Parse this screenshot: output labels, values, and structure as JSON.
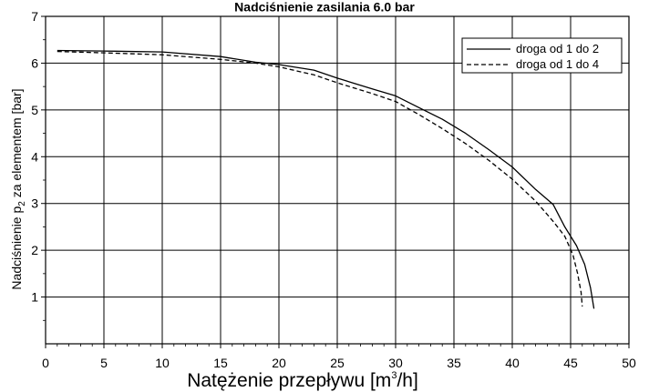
{
  "chart_data": {
    "type": "line",
    "title": "Nadciśnienie zasilania 6.0 bar",
    "xlabel": {
      "prefix": "Natężenie przepływu [m",
      "sup": "3",
      "suffix": "/h]"
    },
    "ylabel": {
      "prefix": "Nadciśnienie p",
      "sub": "2",
      "suffix": " za elementem [bar]"
    },
    "xlim": [
      0,
      50
    ],
    "ylim": [
      0,
      7
    ],
    "xticks": [
      0,
      5,
      10,
      15,
      20,
      25,
      30,
      35,
      40,
      45,
      50
    ],
    "yticks": [
      1,
      2,
      3,
      4,
      5,
      6,
      7
    ],
    "grid": true,
    "legend_position": "top-right",
    "series": [
      {
        "name": "droga od 1 do 2",
        "style": "solid",
        "color": "#000000",
        "points": [
          [
            1,
            6.27
          ],
          [
            5,
            6.26
          ],
          [
            10,
            6.24
          ],
          [
            15,
            6.14
          ],
          [
            18,
            6.02
          ],
          [
            20,
            5.97
          ],
          [
            23,
            5.85
          ],
          [
            25,
            5.68
          ],
          [
            28,
            5.45
          ],
          [
            30,
            5.3
          ],
          [
            32,
            5.05
          ],
          [
            34,
            4.8
          ],
          [
            36,
            4.5
          ],
          [
            38,
            4.15
          ],
          [
            40,
            3.78
          ],
          [
            42,
            3.3
          ],
          [
            43.5,
            2.98
          ],
          [
            44.5,
            2.5
          ],
          [
            45.5,
            2.1
          ],
          [
            46.2,
            1.7
          ],
          [
            46.7,
            1.2
          ],
          [
            47.0,
            0.75
          ]
        ]
      },
      {
        "name": "droga od 1 do 4",
        "style": "dashed",
        "color": "#000000",
        "points": [
          [
            1,
            6.25
          ],
          [
            5,
            6.22
          ],
          [
            10,
            6.18
          ],
          [
            15,
            6.08
          ],
          [
            18,
            6.0
          ],
          [
            20,
            5.92
          ],
          [
            23,
            5.75
          ],
          [
            25,
            5.58
          ],
          [
            28,
            5.35
          ],
          [
            30,
            5.18
          ],
          [
            32,
            4.9
          ],
          [
            34,
            4.6
          ],
          [
            36,
            4.28
          ],
          [
            38,
            3.92
          ],
          [
            40,
            3.52
          ],
          [
            42,
            3.05
          ],
          [
            43.5,
            2.62
          ],
          [
            44.5,
            2.3
          ],
          [
            45.2,
            1.9
          ],
          [
            45.6,
            1.5
          ],
          [
            45.9,
            1.1
          ],
          [
            46.0,
            0.8
          ]
        ]
      }
    ]
  }
}
